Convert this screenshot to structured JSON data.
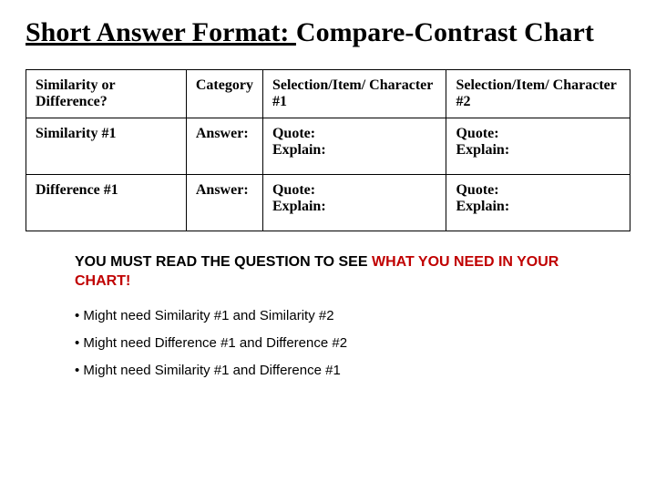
{
  "title": {
    "underlined": "Short Answer Format: ",
    "rest": "Compare-Contrast Chart"
  },
  "table": {
    "headers": {
      "col1": "Similarity or Difference?",
      "col2": "Category",
      "col3": "Selection/Item/ Character #1",
      "col4": "Selection/Item/ Character #2"
    },
    "rows": [
      {
        "label": "Similarity #1",
        "category": "Answer:",
        "sel1_q": "Quote:",
        "sel1_e": "Explain:",
        "sel2_q": "Quote:",
        "sel2_e": "Explain:"
      },
      {
        "label": "Difference #1",
        "category": "Answer:",
        "sel1_q": "Quote:",
        "sel1_e": "Explain:",
        "sel2_q": "Quote:",
        "sel2_e": "Explain:"
      }
    ]
  },
  "instruction": {
    "black1": "YOU MUST READ THE QUESTION TO SEE ",
    "red": "WHAT YOU NEED IN YOUR CHART!"
  },
  "bullets": [
    "Might need Similarity #1 and Similarity #2",
    "Might need Difference #1 and Difference #2",
    "Might need Similarity #1 and Difference #1"
  ],
  "styling": {
    "background_color": "#ffffff",
    "text_color": "#000000",
    "accent_color": "#c00000",
    "border_color": "#000000",
    "title_fontsize": 30,
    "table_fontsize": 16,
    "instruction_fontsize": 16,
    "bullet_fontsize": 15
  }
}
